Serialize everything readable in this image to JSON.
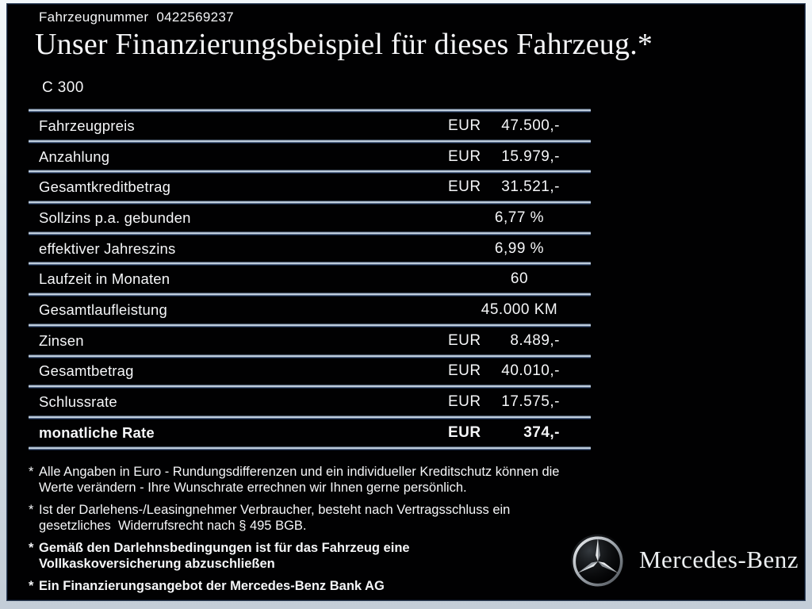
{
  "header": {
    "vehicle_number_label": "Fahrzeugnummer",
    "vehicle_number": "0422569237",
    "title": "Unser Finanzierungsbeispiel für dieses Fahrzeug.*",
    "model": "C 300"
  },
  "table": {
    "rows": [
      {
        "label": "Fahrzeugpreis",
        "currency": "EUR",
        "value": "47.500,-",
        "bold": false
      },
      {
        "label": "Anzahlung",
        "currency": "EUR",
        "value": "15.979,-",
        "bold": false
      },
      {
        "label": "Gesamtkreditbetrag",
        "currency": "EUR",
        "value": "31.521,-",
        "bold": false
      },
      {
        "label": "Sollzins p.a. gebunden",
        "currency": "",
        "value": "6,77 %",
        "bold": false
      },
      {
        "label": "effektiver Jahreszins",
        "currency": "",
        "value": "6,99 %",
        "bold": false
      },
      {
        "label": "Laufzeit in Monaten",
        "currency": "",
        "value": "60",
        "bold": false
      },
      {
        "label": "Gesamtlaufleistung",
        "currency": "",
        "value": "45.000 KM",
        "bold": false
      },
      {
        "label": "Zinsen",
        "currency": "EUR",
        "value": "8.489,-",
        "bold": false
      },
      {
        "label": "Gesamtbetrag",
        "currency": "EUR",
        "value": "40.010,-",
        "bold": false
      },
      {
        "label": "Schlussrate",
        "currency": "EUR",
        "value": "17.575,-",
        "bold": false
      },
      {
        "label": "monatliche Rate",
        "currency": "EUR",
        "value": "374,-",
        "bold": true
      }
    ]
  },
  "footnotes": [
    {
      "marker": "*",
      "bold": false,
      "text": "Alle Angaben in Euro - Rundungsdifferenzen und ein individueller Kreditschutz können die\nWerte verändern - Ihre Wunschrate errechnen wir Ihnen gerne persönlich."
    },
    {
      "marker": "*",
      "bold": false,
      "text": "Ist der Darlehens-/Leasingnehmer Verbraucher, besteht nach Vertragsschluss ein\ngesetzliches  Widerrufsrecht nach § 495 BGB."
    },
    {
      "marker": "*",
      "bold": true,
      "text": "Gemäß den Darlehnsbedingungen ist für das Fahrzeug eine\nVollkaskoversicherung abzuschließen"
    },
    {
      "marker": "*",
      "bold": true,
      "text": "Ein Finanzierungsangebot der Mercedes-Benz Bank AG"
    }
  ],
  "brand": {
    "wordmark": "Mercedes-Benz",
    "logo_icon": "mercedes-star-icon"
  },
  "colors": {
    "content_background": "#010102",
    "text": "#f5f6f8",
    "divider_light": "#d5e0ec",
    "divider_dark": "#22395f",
    "frame_light": "#f2f7fa",
    "frame_dark": "#c3cdd8"
  }
}
